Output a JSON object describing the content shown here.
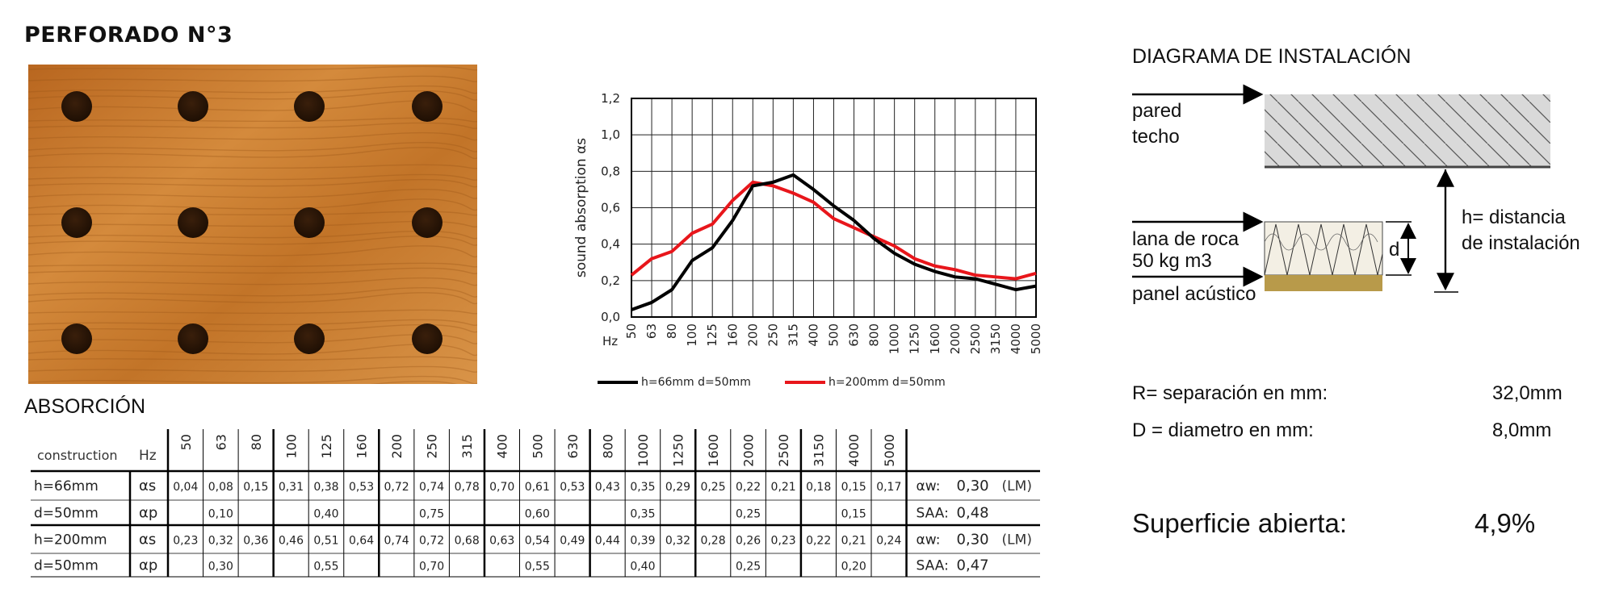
{
  "title": "PERFORADO N°3",
  "panel": {
    "hole_rows": 3,
    "hole_cols": 4,
    "wood_color": "#c97a2f",
    "hole_color": "#2b1608"
  },
  "chart_data": {
    "type": "line",
    "x": [
      "50",
      "63",
      "80",
      "100",
      "125",
      "160",
      "200",
      "250",
      "315",
      "400",
      "500",
      "630",
      "800",
      "1000",
      "1250",
      "1600",
      "2000",
      "2500",
      "3150",
      "4000",
      "5000"
    ],
    "x_unit": "Hz",
    "ylabel": "sound absorption αs",
    "ylim": [
      0,
      1.2
    ],
    "yticks": [
      "0,0",
      "0,2",
      "0,4",
      "0,6",
      "0,8",
      "1,0",
      "1,2"
    ],
    "grid": true,
    "series": [
      {
        "name": "h=66mm d=50mm",
        "color": "#000000",
        "values": [
          0.04,
          0.08,
          0.15,
          0.31,
          0.38,
          0.53,
          0.72,
          0.74,
          0.78,
          0.7,
          0.61,
          0.53,
          0.43,
          0.35,
          0.29,
          0.25,
          0.22,
          0.21,
          0.18,
          0.15,
          0.17
        ]
      },
      {
        "name": "h=200mm d=50mm",
        "color": "#e8161b",
        "values": [
          0.23,
          0.32,
          0.36,
          0.46,
          0.51,
          0.64,
          0.74,
          0.72,
          0.68,
          0.63,
          0.54,
          0.49,
          0.44,
          0.39,
          0.32,
          0.28,
          0.26,
          0.23,
          0.22,
          0.21,
          0.24
        ]
      }
    ]
  },
  "absorcion": {
    "title": "ABSORCIÓN",
    "head_construction": "construction",
    "head_hz": "Hz",
    "freqs": [
      "50",
      "63",
      "80",
      "100",
      "125",
      "160",
      "200",
      "250",
      "315",
      "400",
      "500",
      "630",
      "800",
      "1000",
      "1250",
      "1600",
      "2000",
      "2500",
      "3150",
      "4000",
      "5000"
    ],
    "rows": [
      {
        "label": "h=66mm",
        "sym": "αs",
        "cells": [
          "0,04",
          "0,08",
          "0,15",
          "0,31",
          "0,38",
          "0,53",
          "0,72",
          "0,74",
          "0,78",
          "0,70",
          "0,61",
          "0,53",
          "0,43",
          "0,35",
          "0,29",
          "0,25",
          "0,22",
          "0,21",
          "0,18",
          "0,15",
          "0,17"
        ],
        "summary_label": "αw:",
        "summary_value": "0,30",
        "summary_suffix": "(LM)"
      },
      {
        "label": "d=50mm",
        "sym": "αp",
        "cells": [
          "",
          "0,10",
          "",
          "",
          "0,40",
          "",
          "",
          "0,75",
          "",
          "",
          "0,60",
          "",
          "",
          "0,35",
          "",
          "",
          "0,25",
          "",
          "",
          "0,15",
          ""
        ],
        "summary_label": "SAA:",
        "summary_value": "0,48",
        "summary_suffix": ""
      },
      {
        "label": "h=200mm",
        "sym": "αs",
        "cells": [
          "0,23",
          "0,32",
          "0,36",
          "0,46",
          "0,51",
          "0,64",
          "0,74",
          "0,72",
          "0,68",
          "0,63",
          "0,54",
          "0,49",
          "0,44",
          "0,39",
          "0,32",
          "0,28",
          "0,26",
          "0,23",
          "0,22",
          "0,21",
          "0,24"
        ],
        "summary_label": "αw:",
        "summary_value": "0,30",
        "summary_suffix": "(LM)"
      },
      {
        "label": "d=50mm",
        "sym": "αp",
        "cells": [
          "",
          "0,30",
          "",
          "",
          "0,55",
          "",
          "",
          "0,70",
          "",
          "",
          "0,55",
          "",
          "",
          "0,40",
          "",
          "",
          "0,25",
          "",
          "",
          "0,20",
          ""
        ],
        "summary_label": "SAA:",
        "summary_value": "0,47",
        "summary_suffix": ""
      }
    ]
  },
  "installation": {
    "title": "DIAGRAMA DE INSTALACIÓN",
    "wall_label_1": "pared",
    "wall_label_2": "techo",
    "wool_label_1": "lana de roca",
    "wool_label_2": "50 kg m3",
    "panel_label": "panel acústico",
    "d_label": "d",
    "h_label_1": "h=  distancia",
    "h_label_2": "de instalación"
  },
  "params": {
    "r_label": "R=  separación en mm:",
    "r_value": "32,0mm",
    "d_label": "D =  diametro en mm:",
    "d_value": "8,0mm"
  },
  "superficie": {
    "label": "Superficie abierta:",
    "value": "4,9%"
  }
}
